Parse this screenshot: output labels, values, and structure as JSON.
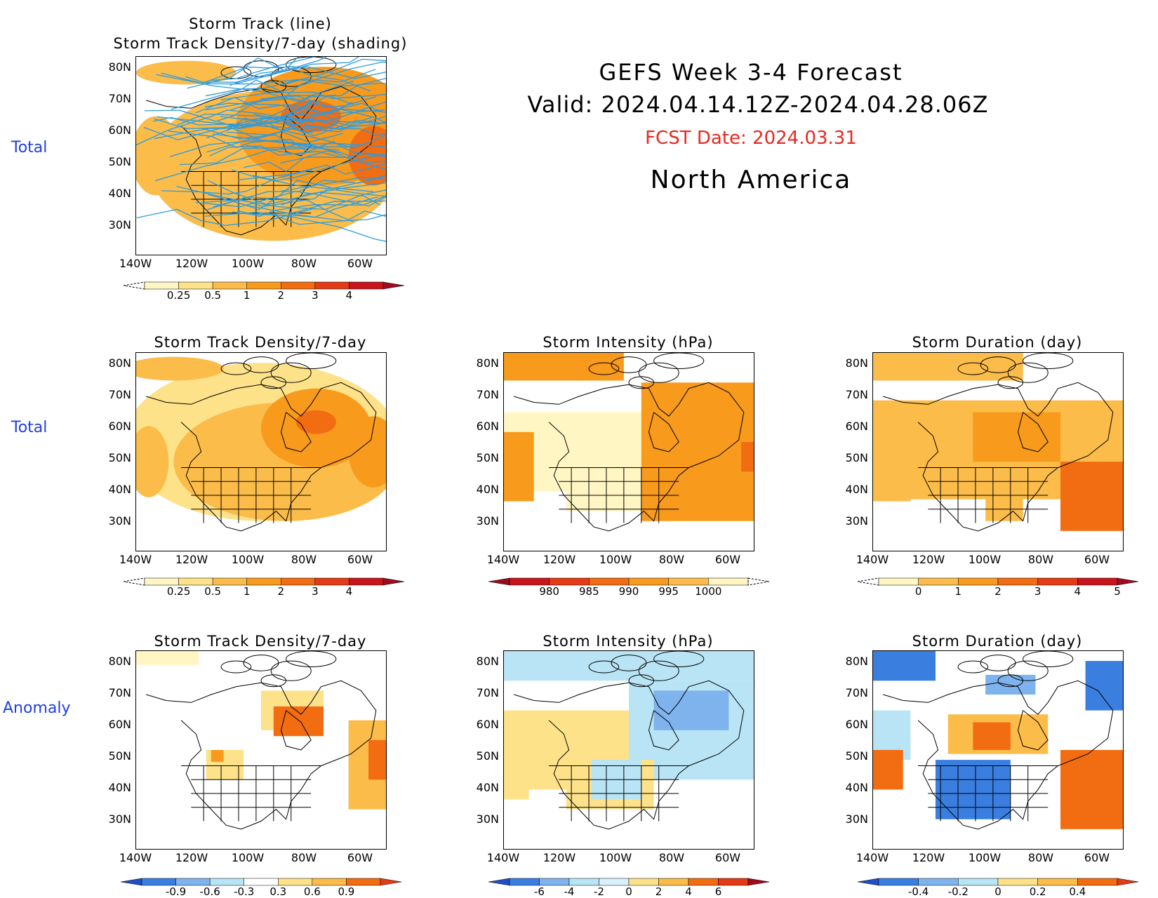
{
  "header": {
    "line1": "GEFS  Week  3-4  Forecast",
    "line2": "Valid:  2024.04.14.12Z-2024.04.28.06Z",
    "fcst": "FCST Date: 2024.03.31",
    "region": "North  America",
    "fcst_color": "#e8281e"
  },
  "row_labels": [
    "Total",
    "Total",
    "Anomaly"
  ],
  "axes": {
    "lat_labels": [
      "80N",
      "70N",
      "60N",
      "50N",
      "40N",
      "30N"
    ],
    "lon_labels": [
      "140W",
      "120W",
      "100W",
      "80W",
      "60W"
    ]
  },
  "panels": [
    {
      "id": "p0",
      "title_lines": [
        "Storm  Track  (line)",
        "Storm  Track  Density/7-day  (shading)"
      ],
      "tracks": true,
      "colorbar": {
        "labels": [
          "0.25",
          "0.5",
          "1",
          "2",
          "3",
          "4"
        ],
        "colors": [
          "#fff6c4",
          "#fde28a",
          "#fbbc4a",
          "#f89a1c",
          "#f26c12",
          "#e43a16",
          "#c8141a"
        ],
        "left_ext": "dashed",
        "right_ext": "#9e0b1e"
      }
    },
    {
      "id": "p1",
      "title_lines": [
        "Storm  Track  Density/7-day"
      ],
      "colorbar": {
        "labels": [
          "0.25",
          "0.5",
          "1",
          "2",
          "3",
          "4"
        ],
        "colors": [
          "#fff6c4",
          "#fde28a",
          "#fbbc4a",
          "#f89a1c",
          "#f26c12",
          "#e43a16",
          "#c8141a"
        ],
        "left_ext": "dashed",
        "right_ext": "#9e0b1e"
      }
    },
    {
      "id": "p2",
      "title_lines": [
        "Storm  Intensity  (hPa)"
      ],
      "colorbar": {
        "labels": [
          "980",
          "985",
          "990",
          "995",
          "1000"
        ],
        "colors": [
          "#c8141a",
          "#e43a16",
          "#f26c12",
          "#f89a1c",
          "#fbbc4a",
          "#fff6c4"
        ],
        "left_ext": "#9e0b1e",
        "right_ext": "dashed"
      }
    },
    {
      "id": "p3",
      "title_lines": [
        "Storm  Duration  (day)"
      ],
      "colorbar": {
        "labels": [
          "0",
          "1",
          "2",
          "3",
          "4",
          "5"
        ],
        "colors": [
          "#fff6c4",
          "#fbbc4a",
          "#f89a1c",
          "#f26c12",
          "#e43a16",
          "#c8141a"
        ],
        "left_ext": "dashed",
        "right_ext": "#9e0b1e"
      }
    },
    {
      "id": "p4",
      "title_lines": [
        "Storm  Track  Density/7-day"
      ],
      "colorbar": {
        "labels": [
          "-0.9",
          "-0.6",
          "-0.3",
          "0.3",
          "0.6",
          "0.9"
        ],
        "colors": [
          "#3a7fe0",
          "#7fb3ee",
          "#b9e4f5",
          "#ffffff",
          "#fde28a",
          "#fbbc4a",
          "#f26c12"
        ],
        "left_ext": "#1f4fc8",
        "right_ext": "#e43a16"
      }
    },
    {
      "id": "p5",
      "title_lines": [
        "Storm  Intensity  (hPa)"
      ],
      "colorbar": {
        "labels": [
          "-6",
          "-4",
          "-2",
          "0",
          "2",
          "4",
          "6"
        ],
        "colors": [
          "#3a7fe0",
          "#7fb3ee",
          "#b9e4f5",
          "#d8f1fa",
          "#fde28a",
          "#fbbc4a",
          "#f26c12",
          "#e43a16"
        ],
        "left_ext": "#1f4fc8",
        "right_ext": "#9e0b1e"
      }
    },
    {
      "id": "p6",
      "title_lines": [
        "Storm  Duration  (day)"
      ],
      "colorbar": {
        "labels": [
          "-0.4",
          "-0.2",
          "0",
          "0.2",
          "0.4"
        ],
        "colors": [
          "#3a7fe0",
          "#7fb3ee",
          "#b9e4f5",
          "#fde28a",
          "#fbbc4a",
          "#f26c12"
        ],
        "left_ext": "#1f4fc8",
        "right_ext": "#e43a16"
      }
    }
  ]
}
